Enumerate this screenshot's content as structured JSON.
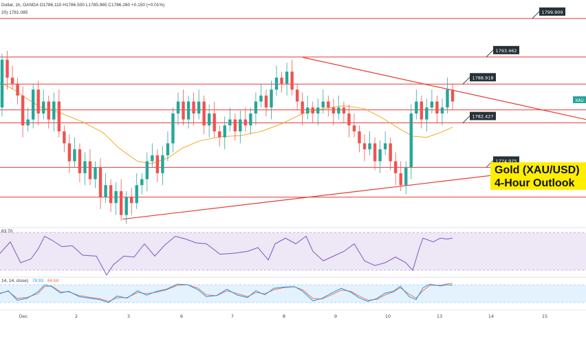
{
  "header": {
    "ohlc": "Dollar, 1h, OANDA  O1786.110  H1786.500  L1785.965  C1786.260  +0.150 (+0.01%)",
    "ma": "20)  1781.085",
    "rsi": "63.70",
    "stoch_label": "14, 14, close)",
    "stoch_k": "78.93",
    "stoch_d": "84.68"
  },
  "outlook": {
    "line1": "Gold (XAU/USD)",
    "line2": "4-Hour Outlook"
  },
  "symbol_tag": "XAU",
  "colors": {
    "up": "#26a69a",
    "down": "#ef5350",
    "level": "#e53935",
    "ma": "#f5a623",
    "rsi": "#7e57c2",
    "stoch_k": "#2196f3",
    "stoch_d": "#ff7043"
  },
  "chart_data": {
    "type": "candlestick",
    "x_axis": {
      "ticks": [
        "Dec",
        "2",
        "3",
        "6",
        "7",
        "8",
        "9",
        "10",
        "13",
        "14",
        "15"
      ]
    },
    "y_range": [
      1765,
      1803
    ],
    "levels": [
      {
        "label": "1799.909",
        "value": 1799.909
      },
      {
        "label": "1793.462",
        "value": 1793.462
      },
      {
        "label": "1788.918",
        "value": 1788.918
      },
      {
        "label": "1782.427",
        "value": 1782.427
      },
      {
        "label": "1774.975",
        "value": 1774.975
      }
    ],
    "extra_levels": [
      1784.6,
      1770.0
    ],
    "trendlines": [
      {
        "name": "descending",
        "from": [
          440,
          1793.4
        ],
        "to": [
          852,
          1783.0
        ]
      },
      {
        "name": "ascending",
        "from": [
          178,
          1766.3
        ],
        "to": [
          852,
          1775.5
        ]
      }
    ],
    "price_path": [
      [
        1785,
        1793
      ],
      [
        1793,
        1790
      ],
      [
        1790,
        1789
      ],
      [
        1789,
        1787
      ],
      [
        1787,
        1782
      ],
      [
        1782,
        1783
      ],
      [
        1783,
        1788
      ],
      [
        1788,
        1784
      ],
      [
        1784,
        1786
      ],
      [
        1786,
        1783
      ],
      [
        1783,
        1786
      ],
      [
        1786,
        1781
      ],
      [
        1781,
        1779
      ],
      [
        1779,
        1776
      ],
      [
        1776,
        1778
      ],
      [
        1778,
        1774
      ],
      [
        1774,
        1776
      ],
      [
        1776,
        1773
      ],
      [
        1773,
        1775
      ],
      [
        1775,
        1770
      ],
      [
        1770,
        1772
      ],
      [
        1772,
        1769
      ],
      [
        1769,
        1771
      ],
      [
        1771,
        1767
      ],
      [
        1767,
        1770
      ],
      [
        1770,
        1769
      ],
      [
        1769,
        1772
      ],
      [
        1772,
        1773
      ],
      [
        1773,
        1776
      ],
      [
        1776,
        1777
      ],
      [
        1777,
        1774
      ],
      [
        1774,
        1777
      ],
      [
        1777,
        1779
      ],
      [
        1779,
        1784
      ],
      [
        1784,
        1786
      ],
      [
        1786,
        1783
      ],
      [
        1783,
        1786
      ],
      [
        1786,
        1784
      ],
      [
        1784,
        1786
      ],
      [
        1786,
        1782
      ],
      [
        1782,
        1784
      ],
      [
        1784,
        1781
      ],
      [
        1781,
        1780
      ],
      [
        1780,
        1782
      ],
      [
        1782,
        1783
      ],
      [
        1783,
        1781
      ],
      [
        1781,
        1783
      ],
      [
        1783,
        1782
      ],
      [
        1782,
        1784
      ],
      [
        1784,
        1786
      ],
      [
        1786,
        1787
      ],
      [
        1787,
        1785
      ],
      [
        1785,
        1788
      ],
      [
        1788,
        1790
      ],
      [
        1790,
        1789
      ],
      [
        1789,
        1791
      ],
      [
        1791,
        1788
      ],
      [
        1788,
        1786
      ],
      [
        1786,
        1784
      ],
      [
        1784,
        1785
      ],
      [
        1785,
        1784
      ],
      [
        1784,
        1785
      ],
      [
        1785,
        1786
      ],
      [
        1786,
        1785
      ],
      [
        1785,
        1784
      ],
      [
        1784,
        1785
      ],
      [
        1785,
        1784
      ],
      [
        1784,
        1782
      ],
      [
        1782,
        1781
      ],
      [
        1781,
        1779
      ],
      [
        1779,
        1778
      ],
      [
        1778,
        1779
      ],
      [
        1779,
        1776
      ],
      [
        1776,
        1778
      ],
      [
        1778,
        1779
      ],
      [
        1779,
        1776
      ],
      [
        1776,
        1774
      ],
      [
        1774,
        1772
      ],
      [
        1772,
        1775
      ],
      [
        1775,
        1784
      ],
      [
        1784,
        1786
      ],
      [
        1786,
        1783
      ],
      [
        1783,
        1785
      ],
      [
        1785,
        1786
      ],
      [
        1786,
        1784
      ],
      [
        1784,
        1785
      ],
      [
        1785,
        1788
      ],
      [
        1788,
        1786
      ]
    ],
    "moving_average": [
      [
        0,
        1789.2
      ],
      [
        20,
        1788.0
      ],
      [
        40,
        1786.4
      ],
      [
        60,
        1785.0
      ],
      [
        90,
        1784.0
      ],
      [
        120,
        1782.6
      ],
      [
        150,
        1780.8
      ],
      [
        170,
        1778.5
      ],
      [
        185,
        1777.2
      ],
      [
        200,
        1776.0
      ],
      [
        220,
        1775.6
      ],
      [
        245,
        1776.6
      ],
      [
        265,
        1778.2
      ],
      [
        290,
        1779.4
      ],
      [
        320,
        1780.1
      ],
      [
        350,
        1780.3
      ],
      [
        380,
        1781.0
      ],
      [
        410,
        1782.3
      ],
      [
        440,
        1784.0
      ],
      [
        470,
        1784.8
      ],
      [
        500,
        1785.3
      ],
      [
        530,
        1784.8
      ],
      [
        555,
        1783.3
      ],
      [
        580,
        1781.5
      ],
      [
        600,
        1780.2
      ],
      [
        620,
        1780.0
      ],
      [
        640,
        1780.8
      ],
      [
        658,
        1781.7
      ]
    ],
    "rsi": [
      [
        0,
        48
      ],
      [
        15,
        60
      ],
      [
        30,
        38
      ],
      [
        45,
        42
      ],
      [
        55,
        52
      ],
      [
        65,
        66
      ],
      [
        75,
        62
      ],
      [
        90,
        55
      ],
      [
        105,
        56
      ],
      [
        120,
        46
      ],
      [
        140,
        45
      ],
      [
        155,
        25
      ],
      [
        165,
        36
      ],
      [
        180,
        45
      ],
      [
        195,
        44
      ],
      [
        210,
        58
      ],
      [
        225,
        45
      ],
      [
        240,
        57
      ],
      [
        255,
        66
      ],
      [
        270,
        63
      ],
      [
        285,
        59
      ],
      [
        300,
        58
      ],
      [
        320,
        47
      ],
      [
        340,
        48
      ],
      [
        360,
        50
      ],
      [
        375,
        54
      ],
      [
        390,
        41
      ],
      [
        400,
        58
      ],
      [
        415,
        64
      ],
      [
        430,
        58
      ],
      [
        445,
        66
      ],
      [
        455,
        50
      ],
      [
        470,
        40
      ],
      [
        485,
        45
      ],
      [
        500,
        50
      ],
      [
        515,
        58
      ],
      [
        530,
        40
      ],
      [
        545,
        35
      ],
      [
        560,
        38
      ],
      [
        575,
        44
      ],
      [
        590,
        38
      ],
      [
        600,
        30
      ],
      [
        610,
        54
      ],
      [
        615,
        64
      ],
      [
        630,
        60
      ],
      [
        640,
        64
      ],
      [
        650,
        63
      ],
      [
        658,
        64
      ]
    ],
    "stoch_k": [
      [
        0,
        50
      ],
      [
        12,
        60
      ],
      [
        25,
        28
      ],
      [
        40,
        35
      ],
      [
        55,
        56
      ],
      [
        65,
        80
      ],
      [
        75,
        74
      ],
      [
        88,
        52
      ],
      [
        100,
        58
      ],
      [
        115,
        40
      ],
      [
        130,
        35
      ],
      [
        145,
        30
      ],
      [
        158,
        20
      ],
      [
        170,
        42
      ],
      [
        185,
        35
      ],
      [
        200,
        60
      ],
      [
        213,
        45
      ],
      [
        228,
        58
      ],
      [
        242,
        65
      ],
      [
        258,
        82
      ],
      [
        273,
        80
      ],
      [
        288,
        63
      ],
      [
        300,
        40
      ],
      [
        315,
        44
      ],
      [
        330,
        65
      ],
      [
        345,
        45
      ],
      [
        360,
        37
      ],
      [
        372,
        60
      ],
      [
        385,
        46
      ],
      [
        398,
        68
      ],
      [
        412,
        72
      ],
      [
        428,
        74
      ],
      [
        440,
        58
      ],
      [
        455,
        26
      ],
      [
        468,
        34
      ],
      [
        482,
        52
      ],
      [
        496,
        68
      ],
      [
        510,
        55
      ],
      [
        522,
        36
      ],
      [
        535,
        24
      ],
      [
        548,
        34
      ],
      [
        560,
        52
      ],
      [
        572,
        58
      ],
      [
        582,
        75
      ],
      [
        595,
        40
      ],
      [
        605,
        30
      ],
      [
        615,
        70
      ],
      [
        625,
        82
      ],
      [
        640,
        76
      ],
      [
        650,
        80
      ],
      [
        658,
        78
      ]
    ],
    "stoch_d": [
      [
        0,
        52
      ],
      [
        12,
        58
      ],
      [
        25,
        34
      ],
      [
        40,
        38
      ],
      [
        55,
        50
      ],
      [
        65,
        74
      ],
      [
        75,
        76
      ],
      [
        88,
        56
      ],
      [
        100,
        56
      ],
      [
        115,
        44
      ],
      [
        130,
        38
      ],
      [
        145,
        33
      ],
      [
        158,
        24
      ],
      [
        170,
        36
      ],
      [
        185,
        37
      ],
      [
        200,
        54
      ],
      [
        213,
        50
      ],
      [
        228,
        55
      ],
      [
        242,
        63
      ],
      [
        258,
        78
      ],
      [
        273,
        80
      ],
      [
        288,
        68
      ],
      [
        300,
        46
      ],
      [
        315,
        43
      ],
      [
        330,
        60
      ],
      [
        345,
        50
      ],
      [
        360,
        40
      ],
      [
        372,
        54
      ],
      [
        385,
        50
      ],
      [
        398,
        63
      ],
      [
        412,
        70
      ],
      [
        428,
        73
      ],
      [
        440,
        63
      ],
      [
        455,
        34
      ],
      [
        468,
        32
      ],
      [
        482,
        46
      ],
      [
        496,
        62
      ],
      [
        510,
        58
      ],
      [
        522,
        42
      ],
      [
        535,
        28
      ],
      [
        548,
        31
      ],
      [
        560,
        46
      ],
      [
        572,
        56
      ],
      [
        582,
        70
      ],
      [
        595,
        48
      ],
      [
        605,
        35
      ],
      [
        615,
        60
      ],
      [
        625,
        78
      ],
      [
        640,
        78
      ],
      [
        650,
        83
      ],
      [
        658,
        85
      ]
    ]
  }
}
